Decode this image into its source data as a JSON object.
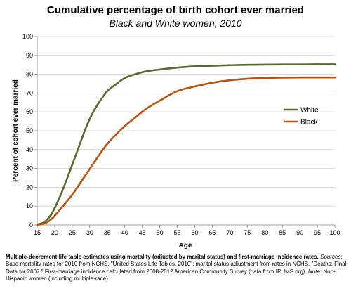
{
  "chart_data": {
    "type": "line",
    "title": "Cumulative percentage of birth cohort ever married",
    "subtitle": "Black and White women, 2010",
    "xlabel": "Age",
    "ylabel": "Percent of cohort ever married",
    "xlim": [
      15,
      100
    ],
    "ylim": [
      0,
      100
    ],
    "xticks": [
      "15",
      "20",
      "25",
      "30",
      "35",
      "40",
      "45",
      "50",
      "55",
      "60",
      "65",
      "70",
      "75",
      "80",
      "85",
      "90",
      "95",
      "100"
    ],
    "yticks": [
      "0",
      "10",
      "20",
      "30",
      "40",
      "50",
      "60",
      "70",
      "80",
      "90",
      "100"
    ],
    "grid": true,
    "legend_position": "right",
    "x": [
      15,
      17,
      19,
      21,
      23,
      25,
      27,
      29,
      31,
      33,
      35,
      37,
      40,
      43,
      46,
      50,
      55,
      60,
      65,
      70,
      75,
      80,
      85,
      90,
      95,
      100
    ],
    "series": [
      {
        "name": "White",
        "color": "#556b2f",
        "values": [
          0.2,
          1.5,
          5.5,
          13,
          22,
          32,
          42,
          52,
          60,
          66,
          71,
          74,
          78,
          80,
          81.5,
          82.5,
          83.5,
          84.2,
          84.5,
          84.8,
          85,
          85.1,
          85.2,
          85.2,
          85.3,
          85.3
        ]
      },
      {
        "name": "Black",
        "color": "#b8520f",
        "values": [
          0.1,
          0.8,
          3,
          7,
          11.5,
          16,
          21.5,
          27,
          32.5,
          38,
          43,
          47,
          52.5,
          57,
          61.5,
          66,
          71,
          73.5,
          75.5,
          76.8,
          77.6,
          78,
          78.2,
          78.3,
          78.3,
          78.3
        ]
      }
    ]
  },
  "footnote": {
    "lead": "Multiple-decrement life table estimates using mortality (adjusted by marital status) and first-marriage incidence rates.",
    "sources_label": "Sources",
    "sources_text": ": Base mortality rates for 2010 from NCHS, \"United States Life Tables, 2010\"; marital status adjustment from rates in NCHS, \"Deaths: Final Data for 2007.\" First-marriage incidence calculated from 2008-2012 American Community Survey (data from IPUMS.org). ",
    "note_label": "Note",
    "note_text": ": Non-Hispanic women (including multiple-race)."
  }
}
